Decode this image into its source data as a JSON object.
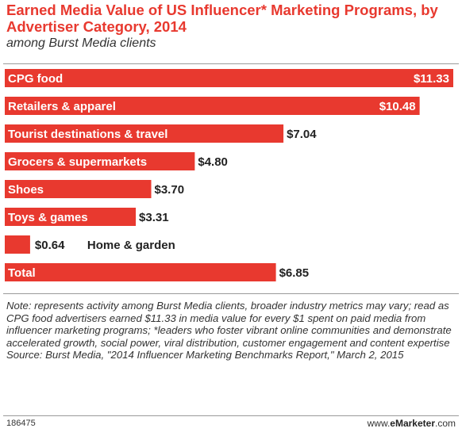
{
  "header": {
    "title": "Earned Media Value of US Influencer* Marketing Programs, by Advertiser Category, 2014",
    "subtitle": "among Burst Media clients"
  },
  "chart_data": {
    "type": "bar",
    "orientation": "horizontal",
    "categories": [
      "CPG food",
      "Retailers & apparel",
      "Tourist destinations & travel",
      "Grocers & supermarkets",
      "Shoes",
      "Toys & games",
      "Home & garden",
      "Total"
    ],
    "values": [
      11.33,
      10.48,
      7.04,
      4.8,
      3.7,
      3.31,
      0.64,
      6.85
    ],
    "value_labels": [
      "$11.33",
      "$10.48",
      "$7.04",
      "$4.80",
      "$3.70",
      "$3.31",
      "$0.64",
      "$6.85"
    ],
    "title": "Earned Media Value of US Influencer* Marketing Programs, by Advertiser Category, 2014",
    "subtitle": "among Burst Media clients",
    "xlim": [
      0,
      11.33
    ],
    "bar_color": "#e8392f",
    "grid": false,
    "legend": "none"
  },
  "footer": {
    "note": "Note: represents activity among Burst Media clients, broader industry metrics may vary; read as CPG food advertisers earned $11.33 in media value for every $1 spent on paid media from influencer marketing programs; *leaders who foster vibrant online communities and demonstrate accelerated growth, social power, viral distribution, customer engagement and content expertise",
    "source": "Source: Burst Media, \"2014 Influencer Marketing Benchmarks Report,\" March 2, 2015",
    "chart_id": "186475",
    "brand_prefix": "www.",
    "brand_name": "eMarketer",
    "brand_suffix": ".com"
  },
  "colors": {
    "accent": "#e8392f",
    "text": "#333333"
  }
}
